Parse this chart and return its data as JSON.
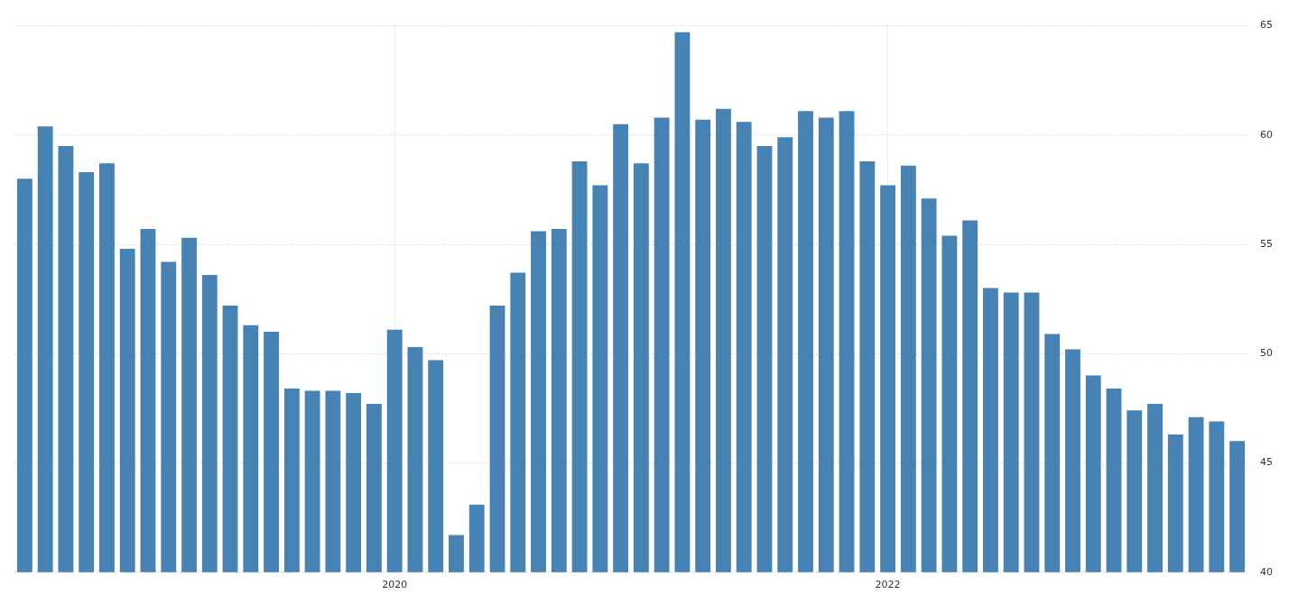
{
  "chart_data": {
    "type": "bar",
    "categories": [
      null,
      null,
      null,
      null,
      null,
      null,
      null,
      null,
      null,
      null,
      null,
      null,
      null,
      null,
      null,
      null,
      null,
      null,
      "2020",
      null,
      null,
      null,
      null,
      null,
      null,
      null,
      null,
      null,
      null,
      null,
      null,
      null,
      null,
      null,
      null,
      null,
      null,
      null,
      null,
      null,
      null,
      null,
      "2022",
      null,
      null,
      null,
      null,
      null,
      null,
      null,
      null,
      null,
      null,
      null,
      null,
      null,
      null,
      null,
      null,
      null
    ],
    "values": [
      58.0,
      60.4,
      59.5,
      58.3,
      58.7,
      54.8,
      55.7,
      54.2,
      55.3,
      53.6,
      52.2,
      51.3,
      51.0,
      48.4,
      48.3,
      48.3,
      48.2,
      47.7,
      51.1,
      50.3,
      49.7,
      41.7,
      43.1,
      52.2,
      53.7,
      55.6,
      55.7,
      58.8,
      57.7,
      60.5,
      58.7,
      60.8,
      64.7,
      60.7,
      61.2,
      60.6,
      59.5,
      59.9,
      61.1,
      60.8,
      61.1,
      58.8,
      57.7,
      58.6,
      57.1,
      55.4,
      56.1,
      53.0,
      52.8,
      52.8,
      50.9,
      50.2,
      49.0,
      48.4,
      47.4,
      47.7,
      46.3,
      47.1,
      46.9,
      46.0
    ],
    "color": "#4682b4",
    "ylim": [
      40,
      65
    ],
    "yticks": [
      40,
      45,
      50,
      55,
      60,
      65
    ],
    "grid": true
  }
}
